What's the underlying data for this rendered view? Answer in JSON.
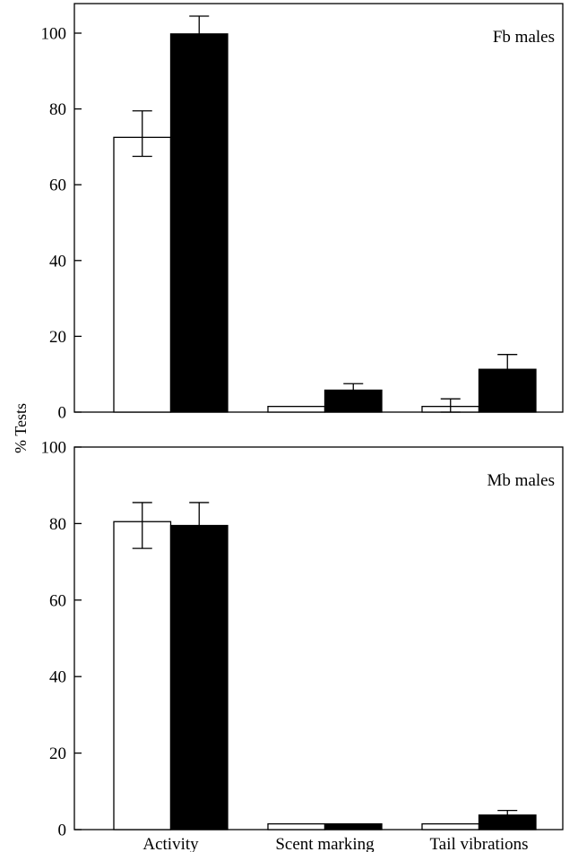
{
  "chart_data": {
    "type": "bar",
    "ylabel": "% Tests",
    "categories": [
      "Activity",
      "Scent marking",
      "Tail vibrations"
    ],
    "colors": {
      "series_1": "#ffffff",
      "series_2": "#000000",
      "edge": "#000000"
    },
    "panels": [
      {
        "label": "Fb males",
        "ylim": [
          0,
          105
        ],
        "yticks": [
          0,
          20,
          40,
          60,
          80,
          100
        ],
        "series": [
          {
            "fill": "white",
            "values": [
              72.5,
              1.5,
              1.5
            ],
            "err_low": [
              67.5,
              1.5,
              0.0
            ],
            "err_high": [
              79.5,
              1.5,
              3.5
            ]
          },
          {
            "fill": "black",
            "values": [
              99.8,
              5.8,
              11.3
            ],
            "err_low": [
              99.8,
              5.8,
              11.3
            ],
            "err_high": [
              104.5,
              7.5,
              15.2
            ]
          }
        ]
      },
      {
        "label": "Mb males",
        "ylim": [
          0,
          100
        ],
        "yticks": [
          0,
          20,
          40,
          60,
          80,
          100
        ],
        "series": [
          {
            "fill": "white",
            "values": [
              80.5,
              1.5,
              1.5
            ],
            "err_low": [
              73.5,
              1.5,
              1.5
            ],
            "err_high": [
              85.5,
              1.5,
              1.5
            ]
          },
          {
            "fill": "black",
            "values": [
              79.5,
              1.5,
              3.8
            ],
            "err_low": [
              79.5,
              1.5,
              3.8
            ],
            "err_high": [
              85.5,
              1.5,
              5.0
            ]
          }
        ]
      }
    ]
  }
}
